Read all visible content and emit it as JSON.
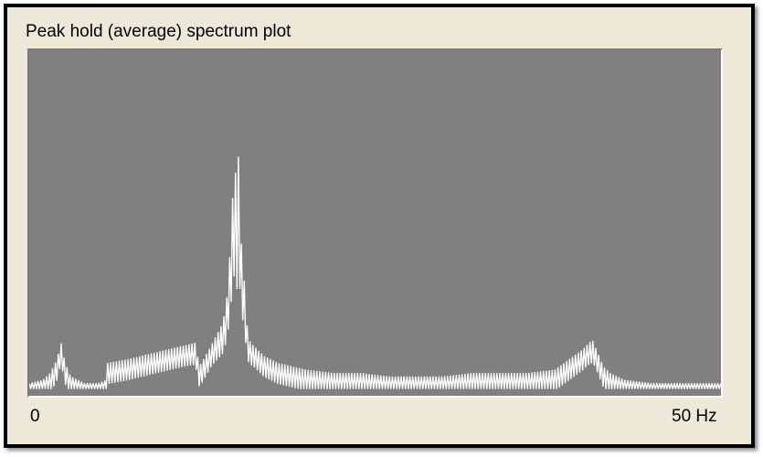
{
  "panel": {
    "title": "Peak hold (average) spectrum plot"
  },
  "chart_data": {
    "type": "line",
    "title": "Peak hold (average) spectrum plot",
    "xlabel": "",
    "ylabel": "",
    "x_tick_labels": [
      "0",
      "50 Hz"
    ],
    "xlim": [
      0,
      50
    ],
    "ylim": [
      0,
      1
    ],
    "grid": false,
    "background_color": "#808080",
    "line_color": "#ffffff",
    "series": [
      {
        "x": [
          0.0,
          1.0,
          1.5,
          2.0,
          2.3,
          2.6,
          3.0,
          3.5,
          4.0,
          5.0,
          5.6,
          5.65,
          7.0,
          8.0,
          9.0,
          10.0,
          11.0,
          12.0,
          12.3,
          13.0,
          13.5,
          14.0,
          14.3,
          14.5,
          14.7,
          14.9,
          15.0,
          15.1,
          15.3,
          15.5,
          15.8,
          16.0,
          17.0,
          18.0,
          19.0,
          20.0,
          22.0,
          24.0,
          26.0,
          28.0,
          30.0,
          32.0,
          34.0,
          36.0,
          38.0,
          39.0,
          40.0,
          40.7,
          41.0,
          41.5,
          42.0,
          43.0,
          45.0,
          47.0,
          50.0
        ],
        "y": [
          0.02,
          0.03,
          0.05,
          0.09,
          0.14,
          0.08,
          0.04,
          0.03,
          0.02,
          0.02,
          0.03,
          0.08,
          0.09,
          0.1,
          0.11,
          0.12,
          0.13,
          0.14,
          0.07,
          0.12,
          0.16,
          0.2,
          0.28,
          0.4,
          0.57,
          0.66,
          0.52,
          0.72,
          0.45,
          0.35,
          0.16,
          0.14,
          0.1,
          0.08,
          0.07,
          0.06,
          0.05,
          0.05,
          0.04,
          0.04,
          0.04,
          0.05,
          0.05,
          0.05,
          0.06,
          0.09,
          0.12,
          0.15,
          0.12,
          0.07,
          0.05,
          0.03,
          0.02,
          0.02,
          0.02
        ]
      }
    ]
  }
}
